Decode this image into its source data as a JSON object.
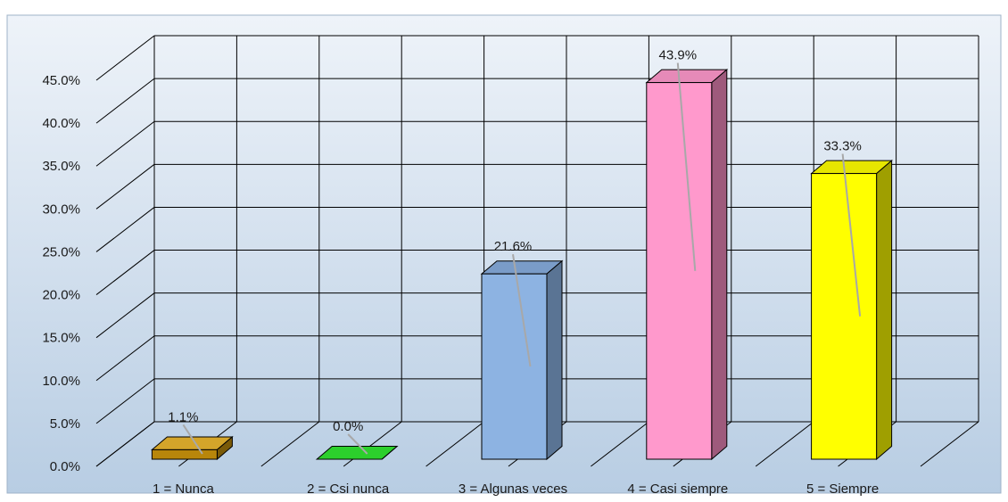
{
  "chart_data": {
    "type": "bar",
    "categories": [
      "1 = Nunca",
      "2 = Csi nunca",
      "3 = Algunas veces",
      "4 = Casi siempre",
      "5 = Siempre"
    ],
    "values": [
      1.1,
      0.0,
      21.6,
      43.9,
      33.3
    ],
    "data_labels": [
      "1.1%",
      "0.0%",
      "21.6%",
      "43.9%",
      "33.3%"
    ],
    "ylim": [
      0,
      45
    ],
    "yticks": [
      "0.0%",
      "5.0%",
      "10.0%",
      "15.0%",
      "20.0%",
      "25.0%",
      "30.0%",
      "35.0%",
      "40.0%",
      "45.0%"
    ],
    "style": "3d-column",
    "grid": true,
    "legend": "none",
    "colors": [
      {
        "front": "#b8860b",
        "side": "#7a5a08",
        "top": "#d4a52a"
      },
      {
        "front": "#1fbf1f",
        "side": "#138a13",
        "top": "#2ccf2c"
      },
      {
        "front": "#8db3e2",
        "side": "#5a7494",
        "top": "#7a9cc8"
      },
      {
        "front": "#ff99cc",
        "side": "#9e5a7c",
        "top": "#e68ab8"
      },
      {
        "front": "#ffff00",
        "side": "#9f9f00",
        "top": "#e6e600"
      }
    ],
    "background_gradient": [
      "#eef3f9",
      "#b8cde3"
    ]
  }
}
